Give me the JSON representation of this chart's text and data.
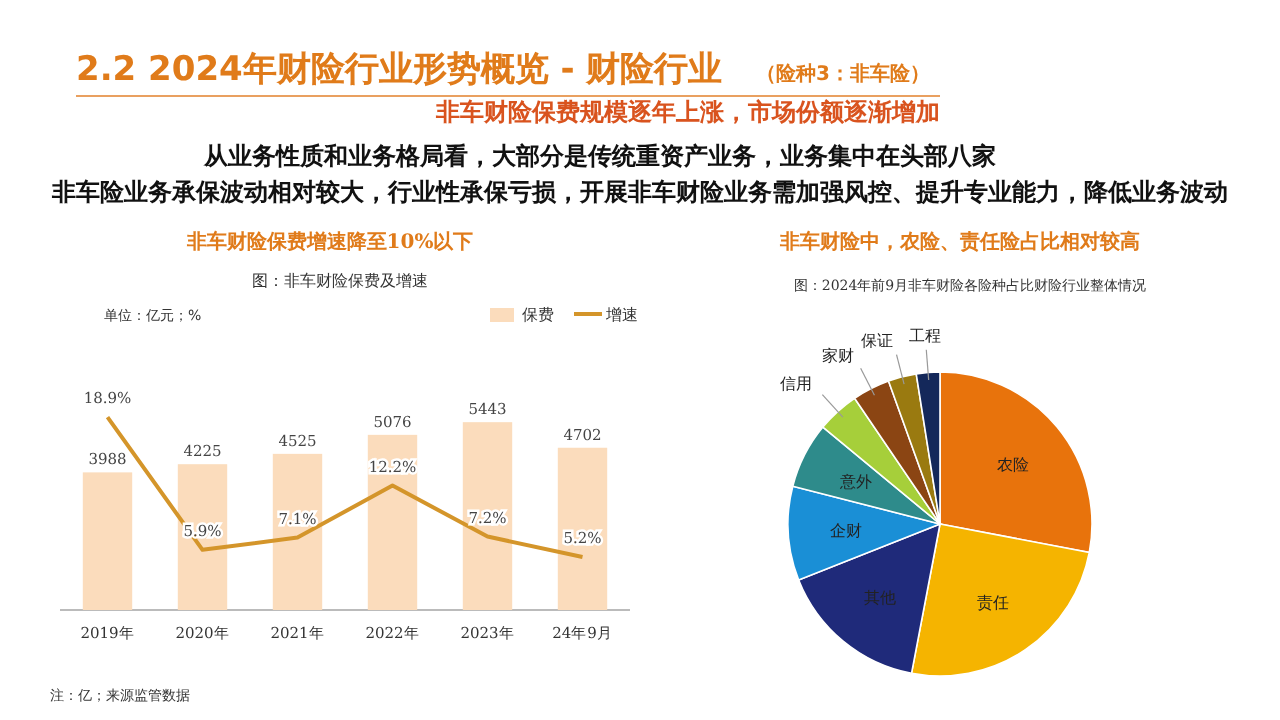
{
  "chart_data": [
    {
      "type": "other",
      "title": "2.2 2024年财险行业形势概览 - 财险行业",
      "subtitle": "（险种3：非车险）",
      "annotations": [
        "非车财险保费规模逐年上涨，市场份额逐渐增加",
        "从业务性质和业务格局看，大部分是传统重资产业务，业务集中在头部八家",
        "非车险业务承保波动相对较大，行业性承保亏损，开展非车财险业务需加强风控、提升专业能力，降低业务波动"
      ]
    },
    {
      "type": "bar",
      "title": "非车财险保费增速降至10%以下",
      "subtitle": "图：非车财险保费及增速",
      "annotations": [
        "单位：亿元；%",
        "注：亿；来源监管数据"
      ],
      "categories": [
        "2019年",
        "2020年",
        "2021年",
        "2022年",
        "2023年",
        "24年9月"
      ],
      "legend": "top right",
      "data_labels": true,
      "series": [
        {
          "name": "保费",
          "type": "bar",
          "color": "#fbdcbc",
          "values": [
            3988,
            4225,
            4525,
            5076,
            5443,
            4702
          ]
        },
        {
          "name": "增速",
          "type": "line",
          "axis": "y2",
          "color": "#d4952a",
          "values": [
            18.9,
            5.9,
            7.1,
            12.2,
            7.2,
            5.2
          ],
          "value_labels": [
            "18.9%",
            "5.9%",
            "7.1%",
            "12.2%",
            "7.2%",
            "5.2%"
          ]
        }
      ]
    },
    {
      "type": "pie",
      "title": "非车财险中，农险、责任险占比相对较高",
      "subtitle": "图：2024年前9月非车财险各险种占比财险行业整体情况",
      "categories": [
        "农险",
        "责任",
        "其他",
        "企财",
        "意外",
        "信用",
        "家财",
        "保证",
        "工程"
      ],
      "values": [
        28,
        25,
        16,
        10,
        7,
        4.5,
        4,
        3,
        2.5
      ],
      "colors": [
        "#e8730c",
        "#f5b400",
        "#1f2a7a",
        "#1a8fd6",
        "#2e8b8b",
        "#a6cf3a",
        "#8b4513",
        "#9a7a10",
        "#14285a"
      ]
    }
  ]
}
